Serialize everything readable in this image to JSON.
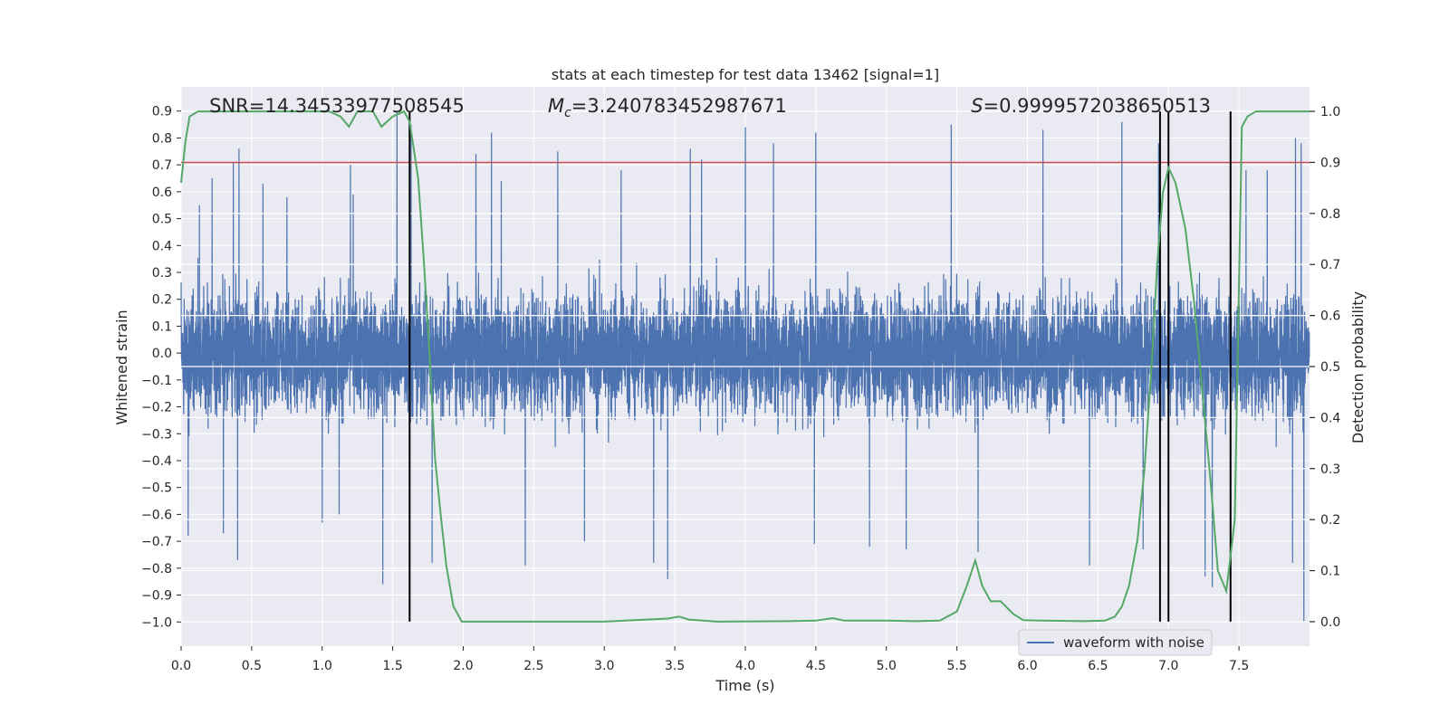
{
  "chart_data": {
    "type": "line",
    "title": "stats at each timestep for test data 13462 [signal=1]",
    "xlabel": "Time (s)",
    "ylabel": "Whitened strain",
    "y2label": "Detection probability",
    "xlim": [
      0.0,
      8.0
    ],
    "ylim": [
      -1.09,
      0.99
    ],
    "y2lim": [
      -0.048,
      1.048
    ],
    "x_ticks": [
      0.0,
      0.5,
      1.0,
      1.5,
      2.0,
      2.5,
      3.0,
      3.5,
      4.0,
      4.5,
      5.0,
      5.5,
      6.0,
      6.5,
      7.0,
      7.5
    ],
    "x_tick_labels": [
      "0.0",
      "0.5",
      "1.0",
      "1.5",
      "2.0",
      "2.5",
      "3.0",
      "3.5",
      "4.0",
      "4.5",
      "5.0",
      "5.5",
      "6.0",
      "6.5",
      "7.0",
      "7.5"
    ],
    "y_ticks": [
      -1.0,
      -0.9,
      -0.8,
      -0.7,
      -0.6,
      -0.5,
      -0.4,
      -0.3,
      -0.2,
      -0.1,
      0.0,
      0.1,
      0.2,
      0.3,
      0.4,
      0.5,
      0.6,
      0.7,
      0.8,
      0.9
    ],
    "y_tick_labels": [
      "−1.0",
      "−0.9",
      "−0.8",
      "−0.7",
      "−0.6",
      "−0.5",
      "−0.4",
      "−0.3",
      "−0.2",
      "−0.1",
      "0.0",
      "0.1",
      "0.2",
      "0.3",
      "0.4",
      "0.5",
      "0.6",
      "0.7",
      "0.8",
      "0.9"
    ],
    "y2_ticks": [
      0.0,
      0.1,
      0.2,
      0.3,
      0.4,
      0.5,
      0.6,
      0.7,
      0.8,
      0.9,
      1.0
    ],
    "y2_tick_labels": [
      "0.0",
      "0.1",
      "0.2",
      "0.3",
      "0.4",
      "0.5",
      "0.6",
      "0.7",
      "0.8",
      "0.9",
      "1.0"
    ],
    "grid": true,
    "legend": {
      "position": "lower-right",
      "entries": [
        {
          "label": "waveform with noise",
          "color": "#4c72b0"
        }
      ]
    },
    "annotations": [
      {
        "prefix": "SNR",
        "text": "=14.34533977508545",
        "x": 0.2,
        "y": 0.92
      },
      {
        "prefix": "M",
        "sub": "c",
        "text": "=3.240783452987671",
        "x": 2.6,
        "y": 0.92
      },
      {
        "prefix": "S",
        "text": "=0.9999572038650513",
        "x": 5.6,
        "y": 0.92
      }
    ],
    "threshold": {
      "y2": 0.9,
      "color": "#c44e52"
    },
    "vlines": [
      {
        "x": 1.62,
        "y2_from": 0.0,
        "y2_to": 1.0
      },
      {
        "x": 6.94,
        "y2_from": 0.0,
        "y2_to": 1.0
      },
      {
        "x": 7.0,
        "y2_from": 0.0,
        "y2_to": 1.0
      },
      {
        "x": 7.44,
        "y2_from": 0.0,
        "y2_to": 1.0
      }
    ],
    "series": [
      {
        "name": "waveform with noise",
        "axis": "left",
        "color": "#4c72b0",
        "description": "dense whitened-strain noise, approx 8192 samples, core band about ±0.35 with spikes to about ±0.9",
        "samples": 8192,
        "std": 0.22,
        "spikes": [
          {
            "x": 0.05,
            "y": -0.68
          },
          {
            "x": 0.13,
            "y": 0.55
          },
          {
            "x": 0.22,
            "y": 0.65
          },
          {
            "x": 0.37,
            "y": 0.71
          },
          {
            "x": 0.41,
            "y": 0.76
          },
          {
            "x": 0.4,
            "y": -0.77
          },
          {
            "x": 0.3,
            "y": -0.67
          },
          {
            "x": 0.58,
            "y": 0.63
          },
          {
            "x": 0.75,
            "y": 0.58
          },
          {
            "x": 1.0,
            "y": -0.63
          },
          {
            "x": 1.12,
            "y": -0.6
          },
          {
            "x": 1.2,
            "y": 0.7
          },
          {
            "x": 1.22,
            "y": 0.59
          },
          {
            "x": 1.43,
            "y": -0.86
          },
          {
            "x": 1.53,
            "y": 0.9
          },
          {
            "x": 1.63,
            "y": 0.85
          },
          {
            "x": 1.78,
            "y": -0.78
          },
          {
            "x": 2.09,
            "y": 0.74
          },
          {
            "x": 2.2,
            "y": 0.82
          },
          {
            "x": 2.27,
            "y": 0.64
          },
          {
            "x": 2.44,
            "y": -0.79
          },
          {
            "x": 2.67,
            "y": 0.75
          },
          {
            "x": 2.86,
            "y": -0.7
          },
          {
            "x": 3.12,
            "y": 0.68
          },
          {
            "x": 3.35,
            "y": -0.78
          },
          {
            "x": 3.45,
            "y": -0.84
          },
          {
            "x": 3.61,
            "y": 0.76
          },
          {
            "x": 3.69,
            "y": 0.72
          },
          {
            "x": 4.0,
            "y": 0.84
          },
          {
            "x": 4.2,
            "y": 0.78
          },
          {
            "x": 4.5,
            "y": 0.82
          },
          {
            "x": 4.49,
            "y": -0.71
          },
          {
            "x": 4.88,
            "y": -0.72
          },
          {
            "x": 5.14,
            "y": -0.73
          },
          {
            "x": 5.46,
            "y": 0.85
          },
          {
            "x": 5.65,
            "y": -0.74
          },
          {
            "x": 6.11,
            "y": 0.83
          },
          {
            "x": 6.44,
            "y": -0.79
          },
          {
            "x": 6.67,
            "y": 0.86
          },
          {
            "x": 6.82,
            "y": -0.73
          },
          {
            "x": 6.93,
            "y": 0.78
          },
          {
            "x": 7.26,
            "y": -0.83
          },
          {
            "x": 7.31,
            "y": -0.87
          },
          {
            "x": 7.55,
            "y": 0.68
          },
          {
            "x": 7.7,
            "y": 0.68
          },
          {
            "x": 7.88,
            "y": -0.78
          },
          {
            "x": 7.9,
            "y": 0.8
          },
          {
            "x": 7.94,
            "y": 0.78
          },
          {
            "x": 7.96,
            "y": -1.0
          }
        ]
      },
      {
        "name": "Detection probability",
        "axis": "right",
        "color": "#55a868",
        "points": [
          [
            0.0,
            0.86
          ],
          [
            0.03,
            0.94
          ],
          [
            0.06,
            0.99
          ],
          [
            0.12,
            1.0
          ],
          [
            0.3,
            1.0
          ],
          [
            0.6,
            1.0
          ],
          [
            0.9,
            1.0
          ],
          [
            1.05,
            1.0
          ],
          [
            1.13,
            0.99
          ],
          [
            1.19,
            0.97
          ],
          [
            1.25,
            1.0
          ],
          [
            1.36,
            1.0
          ],
          [
            1.42,
            0.97
          ],
          [
            1.5,
            0.99
          ],
          [
            1.58,
            1.0
          ],
          [
            1.62,
            0.98
          ],
          [
            1.68,
            0.87
          ],
          [
            1.72,
            0.71
          ],
          [
            1.76,
            0.53
          ],
          [
            1.8,
            0.32
          ],
          [
            1.84,
            0.21
          ],
          [
            1.88,
            0.11
          ],
          [
            1.93,
            0.03
          ],
          [
            1.99,
            0.0
          ],
          [
            2.2,
            0.0
          ],
          [
            2.6,
            0.0
          ],
          [
            3.0,
            0.0
          ],
          [
            3.3,
            0.004
          ],
          [
            3.45,
            0.006
          ],
          [
            3.53,
            0.01
          ],
          [
            3.6,
            0.004
          ],
          [
            3.8,
            0.0
          ],
          [
            4.3,
            0.001
          ],
          [
            4.5,
            0.002
          ],
          [
            4.62,
            0.007
          ],
          [
            4.7,
            0.002
          ],
          [
            5.0,
            0.002
          ],
          [
            5.2,
            0.001
          ],
          [
            5.38,
            0.002
          ],
          [
            5.5,
            0.02
          ],
          [
            5.57,
            0.07
          ],
          [
            5.63,
            0.12
          ],
          [
            5.68,
            0.07
          ],
          [
            5.74,
            0.04
          ],
          [
            5.81,
            0.04
          ],
          [
            5.9,
            0.015
          ],
          [
            5.97,
            0.003
          ],
          [
            6.1,
            0.002
          ],
          [
            6.4,
            0.001
          ],
          [
            6.55,
            0.002
          ],
          [
            6.62,
            0.01
          ],
          [
            6.67,
            0.03
          ],
          [
            6.72,
            0.07
          ],
          [
            6.78,
            0.16
          ],
          [
            6.83,
            0.3
          ],
          [
            6.88,
            0.5
          ],
          [
            6.92,
            0.7
          ],
          [
            6.96,
            0.84
          ],
          [
            7.0,
            0.89
          ],
          [
            7.05,
            0.86
          ],
          [
            7.12,
            0.77
          ],
          [
            7.18,
            0.63
          ],
          [
            7.24,
            0.45
          ],
          [
            7.3,
            0.27
          ],
          [
            7.35,
            0.1
          ],
          [
            7.41,
            0.06
          ],
          [
            7.47,
            0.2
          ],
          [
            7.52,
            0.97
          ],
          [
            7.56,
            0.99
          ],
          [
            7.62,
            1.0
          ],
          [
            8.0,
            1.0
          ]
        ]
      }
    ]
  }
}
